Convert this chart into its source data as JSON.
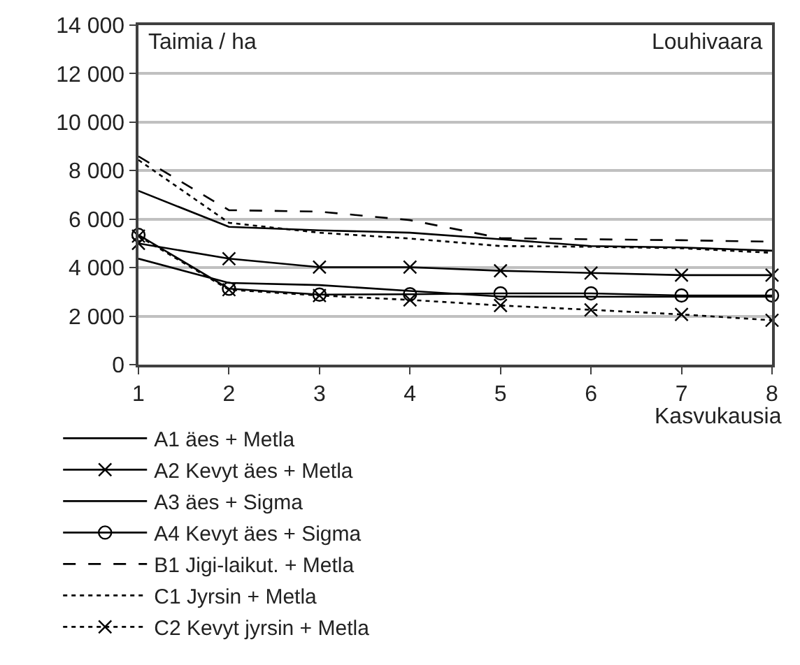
{
  "chart_data": {
    "type": "line",
    "title": "Louhivaara",
    "ylabel": "Taimia / ha",
    "xlabel": "Kasvukausia",
    "x": [
      1,
      2,
      3,
      4,
      5,
      6,
      7,
      8
    ],
    "xlim": [
      1,
      8
    ],
    "xticks": [
      1,
      2,
      3,
      4,
      5,
      6,
      7,
      8
    ],
    "ylim": [
      0,
      14000
    ],
    "yticks": [
      {
        "value": 0,
        "label": "0"
      },
      {
        "value": 2000,
        "label": "2 000"
      },
      {
        "value": 4000,
        "label": "4 000"
      },
      {
        "value": 6000,
        "label": "6 000"
      },
      {
        "value": 8000,
        "label": "8 000"
      },
      {
        "value": 10000,
        "label": "10 000"
      },
      {
        "value": 12000,
        "label": "12 000"
      },
      {
        "value": 14000,
        "label": "14 000"
      }
    ],
    "grid": "y",
    "legend": "bottom left",
    "series": [
      {
        "name": "A1 äes + Metla",
        "color": "#000000",
        "line_style": "solid",
        "marker": "none",
        "values": [
          7170,
          5680,
          5540,
          5440,
          5170,
          4890,
          4830,
          4700
        ]
      },
      {
        "name": "A2 Kevyt äes + Metla",
        "color": "#000000",
        "line_style": "solid",
        "marker": "cross",
        "values": [
          5000,
          4370,
          4020,
          4020,
          3870,
          3780,
          3690,
          3690
        ]
      },
      {
        "name": "A3 äes + Sigma",
        "color": "#000000",
        "line_style": "solid",
        "marker": "none",
        "values": [
          4370,
          3370,
          3280,
          3040,
          2810,
          2800,
          2800,
          2800
        ]
      },
      {
        "name": "A4 Kevyt äes + Sigma",
        "color": "#000000",
        "line_style": "solid",
        "marker": "circle",
        "values": [
          5350,
          3130,
          2890,
          2900,
          2940,
          2940,
          2850,
          2850
        ]
      },
      {
        "name": "B1 Jigi-laikut. + Metla",
        "color": "#000000",
        "line_style": "dashed",
        "marker": "none",
        "values": [
          8590,
          6370,
          6310,
          5960,
          5220,
          5170,
          5130,
          5070
        ]
      },
      {
        "name": "C1 Jyrsin + Metla",
        "color": "#000000",
        "line_style": "dotted",
        "marker": "none",
        "values": [
          8440,
          5850,
          5440,
          5200,
          4890,
          4860,
          4800,
          4610
        ]
      },
      {
        "name": "C2 Kevyt jyrsin + Metla",
        "color": "#000000",
        "line_style": "dotted",
        "marker": "cross",
        "values": [
          5300,
          3090,
          2850,
          2670,
          2440,
          2260,
          2070,
          1830
        ]
      }
    ]
  }
}
